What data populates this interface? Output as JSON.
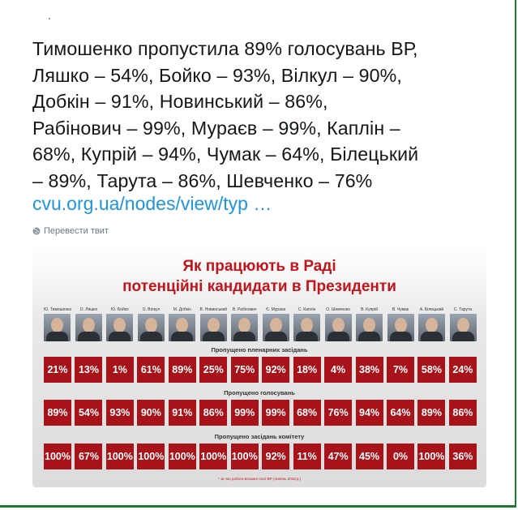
{
  "tweet": {
    "lines": [
      "Тимошенко пропустила 89% голосувань ВР,",
      "Ляшко – 54%, Бойко – 93%, Вілкул – 90%,",
      "Добкін – 91%, Новинський – 86%,",
      "Рабінович – 99%, Мураєв – 99%, Каплін –",
      "68%, Купрій – 94%, Чумак – 64%, Білецький",
      "– 89%, Тарута – 86%, Шевченко – 76%"
    ],
    "link": "cvu.org.ua/nodes/view/typ   …",
    "translate": "Перевести твит"
  },
  "card": {
    "title1": "Як працюють в Раді",
    "title2": "потенційні кандидати в Президенти",
    "names": [
      "Ю. Тимошенко",
      "О. Ляшко",
      "Ю. Бойко",
      "О. Вілкул",
      "М. Добкін",
      "В. Новинський",
      "В. Рабінович",
      "Є. Мураєв",
      "С. Каплін",
      "О. Шевченко",
      "В. Купрій",
      "В. Чумак",
      "А. Білецький",
      "С. Тарута"
    ],
    "row1_label": "Пропущено пленарних засідань",
    "row1": [
      "21%",
      "13%",
      "1%",
      "61%",
      "89%",
      "25%",
      "75%",
      "92%",
      "18%",
      "4%",
      "38%",
      "7%",
      "58%",
      "24%"
    ],
    "row2_label": "Пропущено голосувань",
    "row2": [
      "89%",
      "54%",
      "93%",
      "90%",
      "91%",
      "86%",
      "99%",
      "99%",
      "68%",
      "76%",
      "94%",
      "64%",
      "89%",
      "86%"
    ],
    "row3_label": "Пропущено засідань комітету",
    "row3": [
      "100%",
      "67%",
      "100%",
      "100%",
      "100%",
      "100%",
      "100%",
      "92%",
      "11%",
      "47%",
      "45%",
      "0%",
      "100%",
      "36%"
    ],
    "footnote": "* за час роботи восьмої сесії ВР (липень 2018 р.)"
  }
}
